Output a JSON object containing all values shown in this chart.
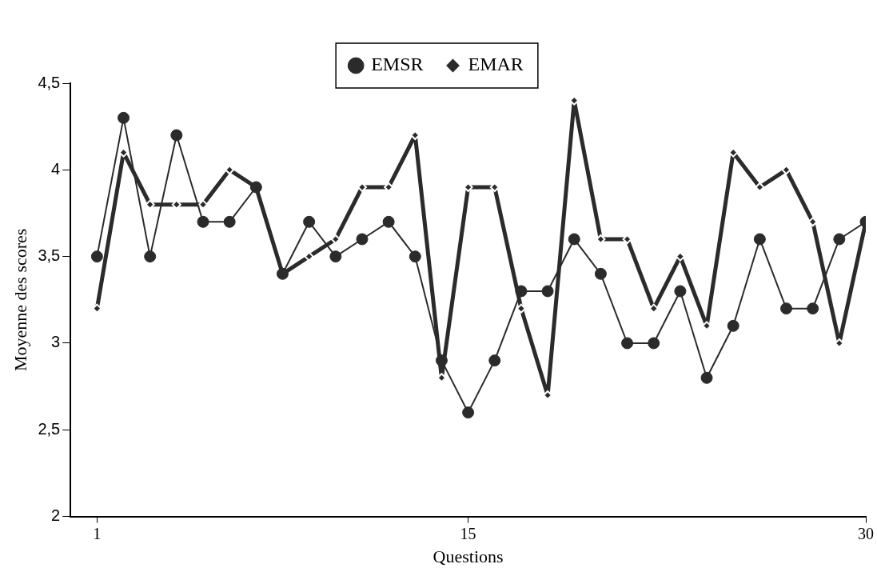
{
  "chart_data": {
    "type": "line",
    "xlabel": "Questions",
    "ylabel": "Moyenne des scores",
    "x": [
      1,
      2,
      3,
      4,
      5,
      6,
      7,
      8,
      9,
      10,
      11,
      12,
      13,
      14,
      15,
      16,
      17,
      18,
      19,
      20,
      21,
      22,
      23,
      24,
      25,
      26,
      27,
      28,
      29,
      30
    ],
    "series": [
      {
        "name": "EMSR",
        "color": "#2b2b2b",
        "marker": "circle",
        "values": [
          3.5,
          4.3,
          3.5,
          4.2,
          3.7,
          3.7,
          3.9,
          3.4,
          3.7,
          3.5,
          3.6,
          3.7,
          3.5,
          2.9,
          2.6,
          2.9,
          3.3,
          3.3,
          3.6,
          3.4,
          3.0,
          3.0,
          3.3,
          2.8,
          3.1,
          3.6,
          3.2,
          3.2,
          3.6,
          3.7
        ]
      },
      {
        "name": "EMAR",
        "color": "#2b2b2b",
        "marker": "diamond",
        "values": [
          3.2,
          4.1,
          3.8,
          3.8,
          3.8,
          4.0,
          3.9,
          3.4,
          3.5,
          3.6,
          3.9,
          3.9,
          4.2,
          2.8,
          3.9,
          3.9,
          3.2,
          2.7,
          4.4,
          3.6,
          3.6,
          3.2,
          3.5,
          3.1,
          4.1,
          3.9,
          4.0,
          3.7,
          3.0,
          3.7
        ]
      }
    ],
    "xlim": [
      0,
      30
    ],
    "xticks": [
      1,
      15,
      30
    ],
    "ylim": [
      2,
      4.5
    ],
    "yticks": [
      2,
      {
        "value": 2.5,
        "label": "2,5"
      },
      3,
      {
        "value": 3.5,
        "label": "3,5"
      },
      4,
      {
        "value": 4.5,
        "label": "4,5"
      }
    ],
    "grid": false,
    "legend": "top"
  }
}
